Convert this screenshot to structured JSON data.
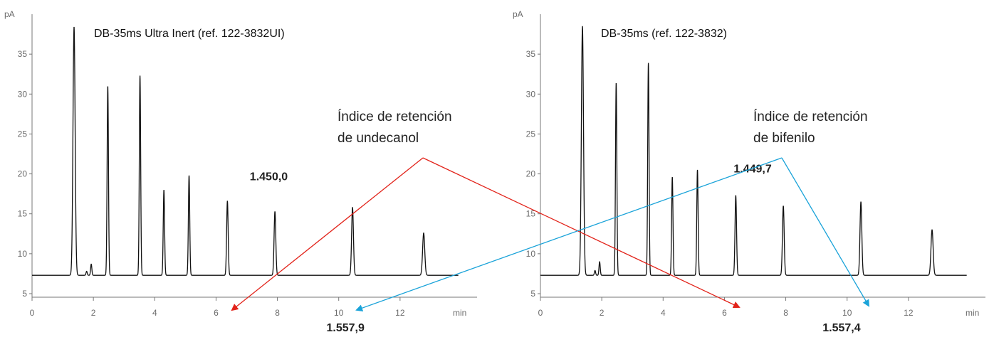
{
  "colors": {
    "trace": "#111111",
    "axis": "#777777",
    "undecanol_arrow": "#e2231a",
    "bifenilo_arrow": "#1aa3d9"
  },
  "chart_data": [
    {
      "type": "line",
      "title": "DB-35ms Ultra Inert (ref. 122-3832UI)",
      "xlabel": "min",
      "ylabel": "pA",
      "xlim": [
        0,
        14
      ],
      "ylim": [
        5,
        40
      ],
      "x_ticks": [
        "0",
        "2",
        "4",
        "6",
        "8",
        "10",
        "12"
      ],
      "y_ticks": [
        "5",
        "10",
        "15",
        "20",
        "25",
        "30",
        "35"
      ],
      "baseline": 7.3,
      "peaks": [
        {
          "rt": 1.37,
          "height": 38.4,
          "width": 0.035
        },
        {
          "rt": 1.78,
          "height": 7.8,
          "width": 0.02
        },
        {
          "rt": 1.93,
          "height": 8.7,
          "width": 0.02
        },
        {
          "rt": 2.47,
          "height": 31.0,
          "width": 0.022
        },
        {
          "rt": 3.52,
          "height": 32.3,
          "width": 0.022
        },
        {
          "rt": 4.3,
          "height": 18.0,
          "width": 0.022
        },
        {
          "rt": 5.12,
          "height": 19.8,
          "width": 0.022
        },
        {
          "rt": 6.37,
          "height": 16.6,
          "width": 0.025
        },
        {
          "rt": 7.92,
          "height": 15.3,
          "width": 0.028
        },
        {
          "rt": 10.45,
          "height": 15.8,
          "width": 0.03
        },
        {
          "rt": 12.77,
          "height": 12.6,
          "width": 0.035
        }
      ],
      "labels": [
        {
          "text": "1.450,0",
          "x": 7.1,
          "y": 19.2
        },
        {
          "text": "1.557,9",
          "x": 9.6,
          "y": 0.0
        }
      ]
    },
    {
      "type": "line",
      "title": "DB-35ms (ref. 122-3832)",
      "xlabel": "min",
      "ylabel": "pA",
      "xlim": [
        0,
        14
      ],
      "ylim": [
        5,
        40
      ],
      "x_ticks": [
        "0",
        "2",
        "4",
        "6",
        "8",
        "10",
        "12"
      ],
      "y_ticks": [
        "5",
        "10",
        "15",
        "20",
        "25",
        "30",
        "35"
      ],
      "baseline": 7.3,
      "peaks": [
        {
          "rt": 1.37,
          "height": 38.5,
          "width": 0.035
        },
        {
          "rt": 1.78,
          "height": 7.9,
          "width": 0.02
        },
        {
          "rt": 1.93,
          "height": 9.0,
          "width": 0.02
        },
        {
          "rt": 2.47,
          "height": 31.4,
          "width": 0.022
        },
        {
          "rt": 3.52,
          "height": 33.9,
          "width": 0.022
        },
        {
          "rt": 4.3,
          "height": 19.6,
          "width": 0.022
        },
        {
          "rt": 5.12,
          "height": 20.5,
          "width": 0.022
        },
        {
          "rt": 6.37,
          "height": 17.3,
          "width": 0.025
        },
        {
          "rt": 7.92,
          "height": 16.0,
          "width": 0.028
        },
        {
          "rt": 10.45,
          "height": 16.5,
          "width": 0.03
        },
        {
          "rt": 12.77,
          "height": 13.0,
          "width": 0.035
        }
      ],
      "labels": [
        {
          "text": "1.449,7",
          "x": 6.3,
          "y": 20.2
        },
        {
          "text": "1.557,4",
          "x": 9.2,
          "y": 0.0
        }
      ]
    }
  ],
  "annotations": [
    {
      "line1": "Índice de retención",
      "line2": "de undecanol",
      "color": "undecanol_arrow"
    },
    {
      "line1": "Índice de retención",
      "line2": "de bifenilo",
      "color": "bifenilo_arrow"
    }
  ]
}
